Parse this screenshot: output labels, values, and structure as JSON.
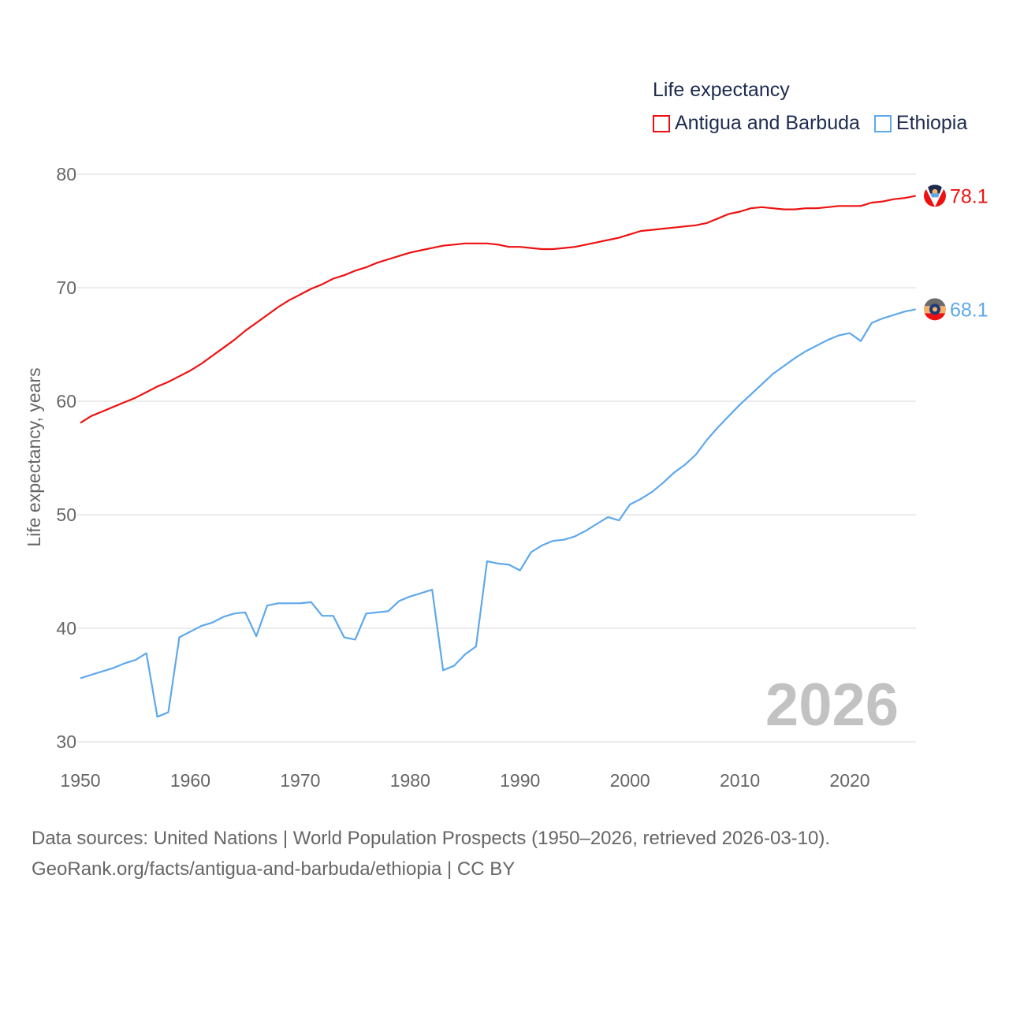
{
  "chart_data": {
    "type": "line",
    "title": "",
    "ylabel": "Life expectancy, years",
    "xlabel": "",
    "xlim": [
      1950,
      2026
    ],
    "ylim": [
      30,
      80
    ],
    "x_ticks": [
      "1950",
      "1960",
      "1970",
      "1980",
      "1990",
      "2000",
      "2010",
      "2020"
    ],
    "y_ticks": [
      "30",
      "40",
      "50",
      "60",
      "70",
      "80"
    ],
    "grid": true,
    "legend_title": "Life expectancy",
    "legend_position": "top-right",
    "year_watermark": "2026",
    "x_start": 1950,
    "series": [
      {
        "name": "Antigua and Barbuda",
        "color": "#ee1111",
        "end_label": "78.1",
        "flag_icon": "antigua-flag-icon",
        "values": [
          58.1,
          58.7,
          59.1,
          59.5,
          59.9,
          60.3,
          60.8,
          61.3,
          61.7,
          62.2,
          62.7,
          63.3,
          64.0,
          64.7,
          65.4,
          66.2,
          66.9,
          67.6,
          68.3,
          68.9,
          69.4,
          69.9,
          70.3,
          70.8,
          71.1,
          71.5,
          71.8,
          72.2,
          72.5,
          72.8,
          73.1,
          73.3,
          73.5,
          73.7,
          73.8,
          73.9,
          73.9,
          73.9,
          73.8,
          73.6,
          73.6,
          73.5,
          73.4,
          73.4,
          73.5,
          73.6,
          73.8,
          74.0,
          74.2,
          74.4,
          74.7,
          75.0,
          75.1,
          75.2,
          75.3,
          75.4,
          75.5,
          75.7,
          76.1,
          76.5,
          76.7,
          77.0,
          77.1,
          77.0,
          76.9,
          76.9,
          77.0,
          77.0,
          77.1,
          77.2,
          77.2,
          77.2,
          77.5,
          77.6,
          77.8,
          77.9,
          78.1
        ]
      },
      {
        "name": "Ethiopia",
        "color": "#5ea8ec",
        "end_label": "68.1",
        "flag_icon": "ethiopia-flag-icon",
        "values": [
          35.6,
          35.9,
          36.2,
          36.5,
          36.9,
          37.2,
          37.8,
          32.2,
          32.6,
          39.2,
          39.7,
          40.2,
          40.5,
          41.0,
          41.3,
          41.4,
          39.3,
          42.0,
          42.2,
          42.2,
          42.2,
          42.3,
          41.1,
          41.1,
          39.2,
          39.0,
          41.3,
          41.4,
          41.5,
          42.4,
          42.8,
          43.1,
          43.4,
          36.3,
          36.7,
          37.7,
          38.4,
          45.9,
          45.7,
          45.6,
          45.1,
          46.7,
          47.3,
          47.7,
          47.8,
          48.1,
          48.6,
          49.2,
          49.8,
          49.5,
          50.9,
          51.4,
          52.0,
          52.8,
          53.7,
          54.4,
          55.3,
          56.6,
          57.7,
          58.7,
          59.7,
          60.6,
          61.5,
          62.4,
          63.1,
          63.8,
          64.4,
          64.9,
          65.4,
          65.8,
          66.0,
          65.3,
          66.9,
          67.3,
          67.6,
          67.9,
          68.1
        ]
      }
    ]
  },
  "footer": {
    "line1": "Data sources: United Nations | World Population Prospects (1950–2026, retrieved 2026-03-10).",
    "line2": "GeoRank.org/facts/antigua-and-barbuda/ethiopia | CC BY"
  }
}
